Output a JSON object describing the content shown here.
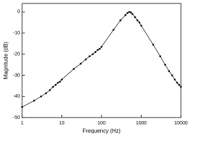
{
  "chart_data": {
    "type": "line",
    "x_label": "Frequency (Hz)",
    "y_label": "Magnitude (dB)",
    "x_scale": "log",
    "x": [
      1,
      2,
      3,
      4,
      5,
      6,
      7,
      8,
      9,
      10,
      20,
      30,
      40,
      50,
      60,
      70,
      80,
      90,
      100,
      200,
      300,
      400,
      450,
      500,
      550,
      600,
      700,
      800,
      900,
      1000,
      2000,
      3000,
      4000,
      5000,
      6000,
      7000,
      8000,
      9000,
      10000
    ],
    "series": [
      {
        "color": "#000000",
        "values": [
          -45,
          -42,
          -40,
          -38.5,
          -37,
          -35.5,
          -34.5,
          -33.5,
          -33,
          -32,
          -27,
          -24.5,
          -22.5,
          -21,
          -20,
          -19,
          -18,
          -17.5,
          -16.5,
          -8.5,
          -4,
          -1.5,
          -0.5,
          0,
          -0.3,
          -1,
          -2.5,
          -4,
          -5,
          -6.5,
          -15.5,
          -21,
          -25,
          -28,
          -30,
          -32,
          -33.5,
          -34.5,
          -35.5
        ]
      }
    ],
    "xlim": [
      1,
      10000
    ],
    "xticks": [
      1,
      10,
      100,
      1000,
      10000
    ],
    "ylim": [
      -50,
      4
    ],
    "yticks": [
      0,
      -10,
      -20,
      -30,
      -40,
      -50
    ]
  }
}
